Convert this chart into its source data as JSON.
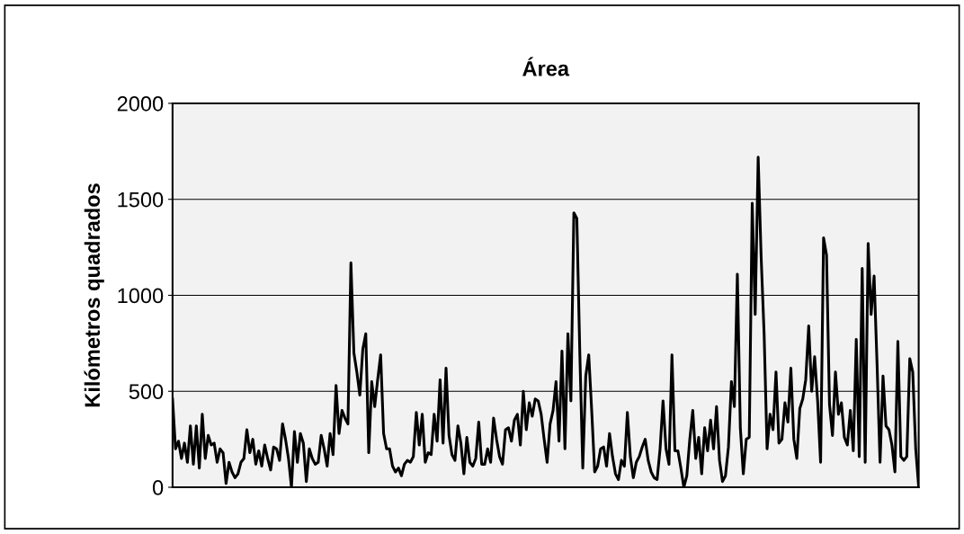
{
  "chart_data": {
    "type": "line",
    "title": "Área",
    "ylabel": "Kilómetros quadrados",
    "categories": [
      null,
      null,
      null,
      null,
      null,
      null,
      null,
      null,
      null,
      null,
      null,
      null,
      null,
      null,
      null,
      null,
      null,
      null,
      null,
      null,
      null,
      null,
      null,
      null,
      null,
      null,
      null,
      null,
      null,
      null,
      null,
      null,
      null,
      null,
      null,
      null,
      null,
      null,
      null,
      null,
      null,
      null,
      null,
      null,
      null,
      null,
      null,
      null,
      null,
      null,
      null,
      null,
      null,
      null,
      null,
      null,
      null,
      null,
      null,
      null,
      null,
      null,
      null,
      null,
      null,
      null,
      null,
      null,
      null,
      null,
      null,
      null,
      null,
      null,
      null,
      null,
      null,
      null,
      null,
      null,
      null,
      null,
      null,
      null,
      null,
      null,
      null,
      null,
      null,
      null,
      null,
      null,
      null,
      null,
      null,
      null,
      null,
      null,
      null,
      null,
      null,
      null,
      null,
      null,
      null,
      null,
      null,
      null,
      null,
      null,
      null,
      null,
      null,
      null,
      null,
      null,
      null,
      null,
      null,
      null,
      null,
      null,
      null,
      null,
      null,
      null,
      null,
      null,
      null,
      null,
      null,
      null,
      null,
      null,
      null,
      null,
      null,
      null,
      null,
      null,
      null,
      null,
      null,
      null,
      null,
      null,
      null,
      null,
      null,
      null,
      null,
      null,
      null,
      null,
      null,
      null,
      null,
      null,
      null,
      null,
      null,
      null,
      null,
      null,
      null,
      null,
      null,
      null,
      null,
      null,
      null,
      null,
      null,
      null,
      null,
      null,
      null,
      null,
      null,
      null,
      null,
      null,
      null,
      null,
      null,
      null,
      null,
      null,
      null,
      null,
      null,
      null,
      null,
      null,
      null,
      null,
      null,
      null,
      null,
      null,
      null,
      null,
      null,
      null,
      null,
      null,
      null,
      null,
      null,
      null,
      null,
      null,
      null,
      null,
      null,
      null,
      null,
      null,
      null,
      null,
      null,
      null,
      null,
      null,
      null,
      null,
      null,
      null,
      null,
      null,
      null,
      null,
      null,
      null,
      null,
      null,
      null,
      null,
      null,
      null,
      null,
      null,
      null,
      null,
      null,
      null,
      null,
      null,
      null,
      null,
      null,
      null
    ],
    "series": [
      {
        "color": "#000000",
        "values": [
          460,
          200,
          240,
          150,
          230,
          130,
          320,
          120,
          320,
          100,
          380,
          150,
          270,
          220,
          230,
          130,
          200,
          180,
          20,
          130,
          80,
          50,
          70,
          130,
          150,
          300,
          180,
          250,
          120,
          190,
          110,
          220,
          150,
          90,
          210,
          200,
          140,
          330,
          250,
          150,
          0,
          290,
          130,
          280,
          230,
          30,
          200,
          150,
          120,
          130,
          270,
          200,
          110,
          280,
          170,
          530,
          280,
          400,
          360,
          330,
          1170,
          700,
          600,
          480,
          720,
          800,
          180,
          550,
          420,
          560,
          690,
          280,
          200,
          200,
          110,
          80,
          100,
          60,
          120,
          140,
          130,
          160,
          390,
          220,
          380,
          130,
          180,
          170,
          380,
          240,
          560,
          230,
          620,
          270,
          170,
          140,
          320,
          230,
          70,
          260,
          130,
          110,
          150,
          340,
          120,
          120,
          200,
          130,
          360,
          250,
          160,
          120,
          300,
          310,
          240,
          350,
          380,
          220,
          500,
          300,
          440,
          370,
          460,
          450,
          380,
          250,
          130,
          330,
          400,
          550,
          240,
          710,
          200,
          800,
          450,
          1430,
          1400,
          700,
          100,
          580,
          690,
          400,
          80,
          110,
          200,
          210,
          110,
          280,
          160,
          70,
          40,
          140,
          110,
          390,
          160,
          50,
          130,
          160,
          210,
          250,
          140,
          80,
          50,
          40,
          200,
          450,
          200,
          120,
          690,
          190,
          190,
          100,
          0,
          60,
          250,
          400,
          150,
          260,
          70,
          310,
          190,
          350,
          200,
          420,
          140,
          30,
          60,
          210,
          550,
          420,
          1110,
          310,
          70,
          250,
          260,
          1480,
          900,
          1720,
          1200,
          800,
          200,
          380,
          300,
          600,
          230,
          250,
          440,
          340,
          620,
          250,
          150,
          410,
          460,
          560,
          840,
          500,
          680,
          450,
          130,
          1300,
          1210,
          430,
          270,
          600,
          380,
          440,
          260,
          220,
          400,
          190,
          770,
          160,
          1140,
          130,
          1270,
          900,
          1100,
          640,
          130,
          580,
          320,
          300,
          220,
          80,
          760,
          160,
          140,
          160,
          670,
          600,
          200,
          0
        ]
      }
    ],
    "ylim": [
      0,
      2000
    ],
    "yticks": [
      0,
      500,
      1000,
      1500,
      2000
    ],
    "grid": "y",
    "legend": false,
    "marker": "none",
    "line_style": "solid"
  }
}
